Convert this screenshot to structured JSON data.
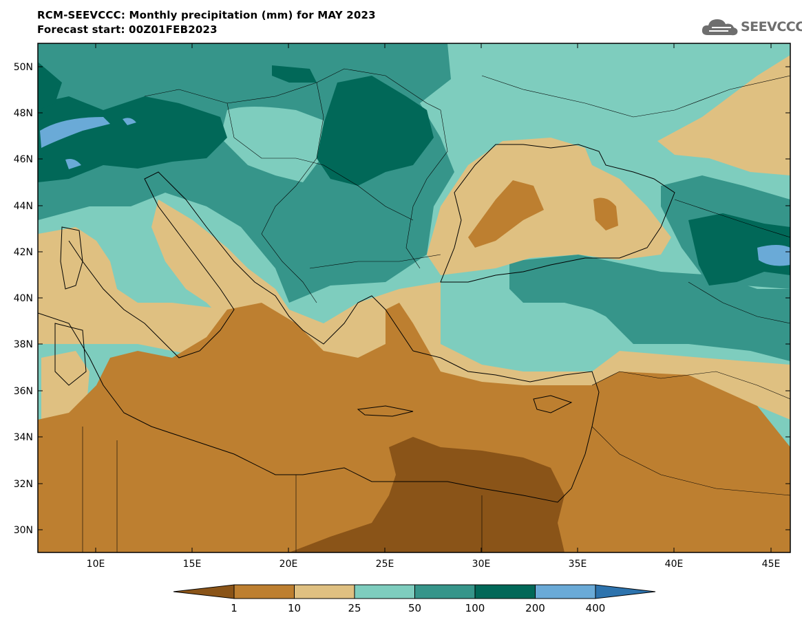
{
  "title": {
    "line1": "RCM-SEEVCCC: Monthly precipitation (mm) for MAY 2023",
    "line2": "Forecast start: 00Z01FEB2023"
  },
  "logo": {
    "text": "SEEVCCC",
    "icon": "cloud-logo-icon"
  },
  "axes": {
    "lat_labels": [
      "50N",
      "48N",
      "46N",
      "44N",
      "42N",
      "40N",
      "38N",
      "36N",
      "34N",
      "32N",
      "30N"
    ],
    "lon_labels": [
      "10E",
      "15E",
      "20E",
      "25E",
      "30E",
      "35E",
      "40E",
      "45E"
    ]
  },
  "legend": {
    "levels": [
      "1",
      "10",
      "25",
      "50",
      "100",
      "200",
      "400"
    ],
    "colors": [
      "#8a5418",
      "#bd7f30",
      "#dfc081",
      "#7ecdbe",
      "#36958a",
      "#016858",
      "#6aaad7",
      "#2d73ad"
    ]
  }
}
